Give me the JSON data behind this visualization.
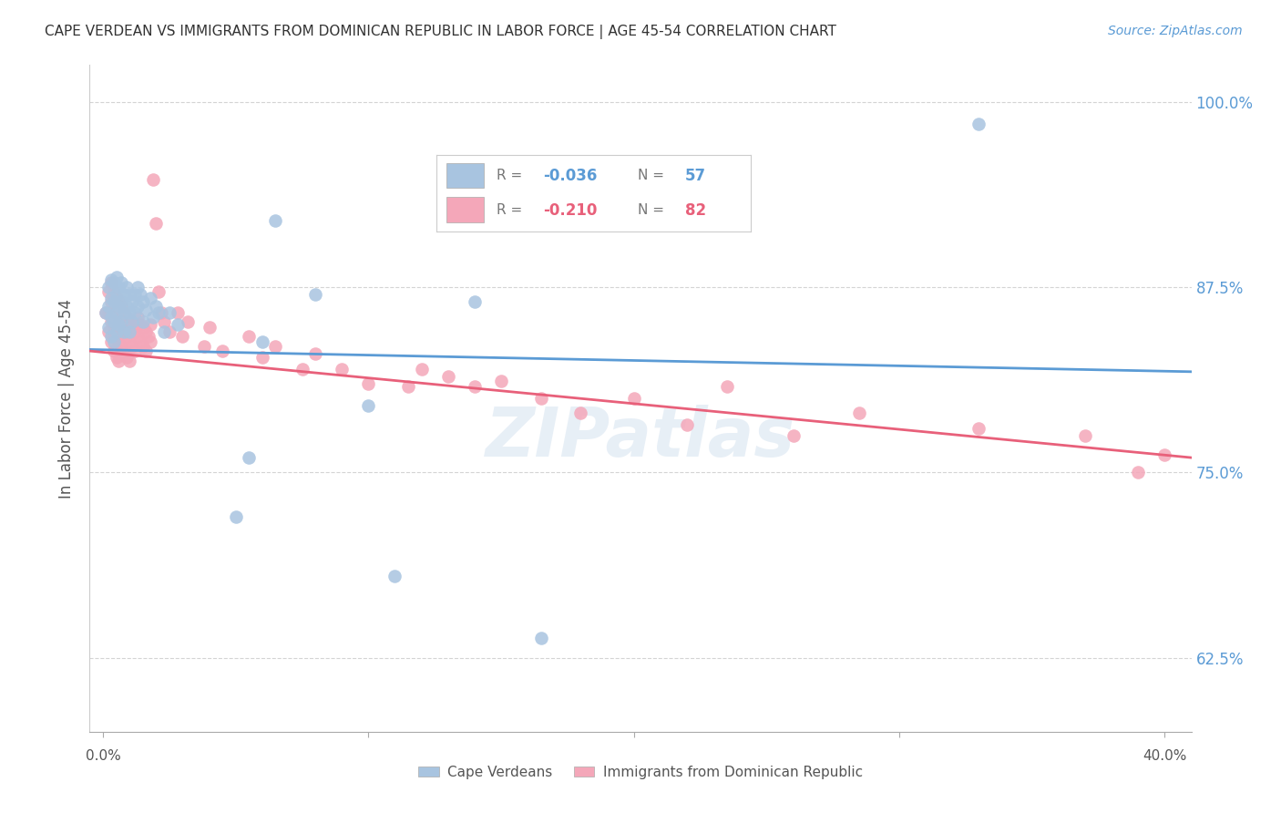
{
  "title": "CAPE VERDEAN VS IMMIGRANTS FROM DOMINICAN REPUBLIC IN LABOR FORCE | AGE 45-54 CORRELATION CHART",
  "source": "Source: ZipAtlas.com",
  "ylabel": "In Labor Force | Age 45-54",
  "ylim": [
    0.575,
    1.025
  ],
  "xlim": [
    -0.005,
    0.41
  ],
  "yticks": [
    0.625,
    0.75,
    0.875,
    1.0
  ],
  "ytick_labels": [
    "62.5%",
    "75.0%",
    "87.5%",
    "100.0%"
  ],
  "xticks": [
    0.0,
    0.1,
    0.2,
    0.3,
    0.4
  ],
  "legend_label_blue": "Cape Verdeans",
  "legend_label_pink": "Immigrants from Dominican Republic",
  "blue_color": "#a8c4e0",
  "pink_color": "#f4a7b9",
  "blue_line_color": "#5b9bd5",
  "pink_line_color": "#e8607a",
  "blue_r": "-0.036",
  "blue_n": "57",
  "pink_r": "-0.210",
  "pink_n": "82",
  "blue_scatter": [
    [
      0.001,
      0.858
    ],
    [
      0.002,
      0.875
    ],
    [
      0.002,
      0.862
    ],
    [
      0.002,
      0.848
    ],
    [
      0.003,
      0.88
    ],
    [
      0.003,
      0.868
    ],
    [
      0.003,
      0.855
    ],
    [
      0.003,
      0.842
    ],
    [
      0.004,
      0.878
    ],
    [
      0.004,
      0.865
    ],
    [
      0.004,
      0.852
    ],
    [
      0.004,
      0.838
    ],
    [
      0.005,
      0.882
    ],
    [
      0.005,
      0.87
    ],
    [
      0.005,
      0.858
    ],
    [
      0.005,
      0.845
    ],
    [
      0.006,
      0.875
    ],
    [
      0.006,
      0.862
    ],
    [
      0.006,
      0.85
    ],
    [
      0.007,
      0.878
    ],
    [
      0.007,
      0.865
    ],
    [
      0.007,
      0.852
    ],
    [
      0.008,
      0.87
    ],
    [
      0.008,
      0.858
    ],
    [
      0.008,
      0.845
    ],
    [
      0.009,
      0.875
    ],
    [
      0.009,
      0.862
    ],
    [
      0.01,
      0.87
    ],
    [
      0.01,
      0.858
    ],
    [
      0.01,
      0.845
    ],
    [
      0.011,
      0.865
    ],
    [
      0.011,
      0.852
    ],
    [
      0.012,
      0.87
    ],
    [
      0.012,
      0.858
    ],
    [
      0.013,
      0.875
    ],
    [
      0.013,
      0.862
    ],
    [
      0.014,
      0.87
    ],
    [
      0.015,
      0.865
    ],
    [
      0.015,
      0.852
    ],
    [
      0.016,
      0.86
    ],
    [
      0.018,
      0.868
    ],
    [
      0.019,
      0.855
    ],
    [
      0.02,
      0.862
    ],
    [
      0.021,
      0.858
    ],
    [
      0.023,
      0.845
    ],
    [
      0.025,
      0.858
    ],
    [
      0.028,
      0.85
    ],
    [
      0.05,
      0.72
    ],
    [
      0.055,
      0.76
    ],
    [
      0.06,
      0.838
    ],
    [
      0.065,
      0.92
    ],
    [
      0.08,
      0.87
    ],
    [
      0.1,
      0.795
    ],
    [
      0.11,
      0.68
    ],
    [
      0.14,
      0.865
    ],
    [
      0.165,
      0.638
    ],
    [
      0.33,
      0.985
    ]
  ],
  "pink_scatter": [
    [
      0.001,
      0.858
    ],
    [
      0.002,
      0.872
    ],
    [
      0.002,
      0.858
    ],
    [
      0.002,
      0.845
    ],
    [
      0.003,
      0.878
    ],
    [
      0.003,
      0.865
    ],
    [
      0.003,
      0.852
    ],
    [
      0.003,
      0.838
    ],
    [
      0.004,
      0.872
    ],
    [
      0.004,
      0.858
    ],
    [
      0.004,
      0.845
    ],
    [
      0.004,
      0.832
    ],
    [
      0.005,
      0.868
    ],
    [
      0.005,
      0.855
    ],
    [
      0.005,
      0.842
    ],
    [
      0.005,
      0.828
    ],
    [
      0.006,
      0.865
    ],
    [
      0.006,
      0.852
    ],
    [
      0.006,
      0.838
    ],
    [
      0.006,
      0.825
    ],
    [
      0.007,
      0.862
    ],
    [
      0.007,
      0.848
    ],
    [
      0.007,
      0.835
    ],
    [
      0.008,
      0.858
    ],
    [
      0.008,
      0.845
    ],
    [
      0.008,
      0.832
    ],
    [
      0.009,
      0.855
    ],
    [
      0.009,
      0.842
    ],
    [
      0.009,
      0.828
    ],
    [
      0.01,
      0.852
    ],
    [
      0.01,
      0.838
    ],
    [
      0.01,
      0.825
    ],
    [
      0.011,
      0.848
    ],
    [
      0.011,
      0.835
    ],
    [
      0.012,
      0.845
    ],
    [
      0.012,
      0.832
    ],
    [
      0.013,
      0.855
    ],
    [
      0.013,
      0.842
    ],
    [
      0.014,
      0.85
    ],
    [
      0.014,
      0.838
    ],
    [
      0.015,
      0.848
    ],
    [
      0.015,
      0.835
    ],
    [
      0.016,
      0.845
    ],
    [
      0.016,
      0.832
    ],
    [
      0.017,
      0.842
    ],
    [
      0.018,
      0.85
    ],
    [
      0.018,
      0.838
    ],
    [
      0.019,
      0.948
    ],
    [
      0.02,
      0.918
    ],
    [
      0.021,
      0.872
    ],
    [
      0.022,
      0.858
    ],
    [
      0.023,
      0.852
    ],
    [
      0.025,
      0.845
    ],
    [
      0.028,
      0.858
    ],
    [
      0.03,
      0.842
    ],
    [
      0.032,
      0.852
    ],
    [
      0.038,
      0.835
    ],
    [
      0.04,
      0.848
    ],
    [
      0.045,
      0.832
    ],
    [
      0.055,
      0.842
    ],
    [
      0.06,
      0.828
    ],
    [
      0.065,
      0.835
    ],
    [
      0.075,
      0.82
    ],
    [
      0.08,
      0.83
    ],
    [
      0.09,
      0.82
    ],
    [
      0.1,
      0.81
    ],
    [
      0.115,
      0.808
    ],
    [
      0.12,
      0.82
    ],
    [
      0.13,
      0.815
    ],
    [
      0.14,
      0.808
    ],
    [
      0.15,
      0.812
    ],
    [
      0.165,
      0.8
    ],
    [
      0.18,
      0.79
    ],
    [
      0.2,
      0.8
    ],
    [
      0.22,
      0.782
    ],
    [
      0.235,
      0.808
    ],
    [
      0.26,
      0.775
    ],
    [
      0.285,
      0.79
    ],
    [
      0.33,
      0.78
    ],
    [
      0.37,
      0.775
    ],
    [
      0.39,
      0.75
    ],
    [
      0.4,
      0.762
    ]
  ],
  "watermark": "ZIPatlas",
  "background_color": "#ffffff",
  "grid_color": "#d0d0d0"
}
